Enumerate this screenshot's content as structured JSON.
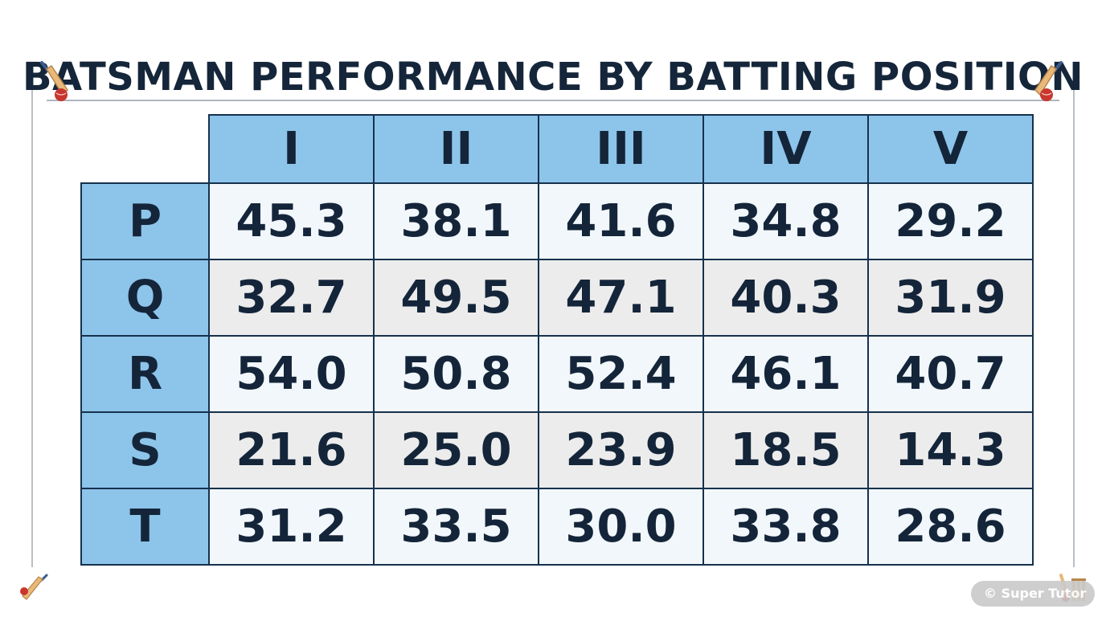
{
  "chart_data": {
    "type": "table",
    "title": "BATSMAN PERFORMANCE BY BATTING POSITION",
    "columns": [
      "I",
      "II",
      "III",
      "IV",
      "V"
    ],
    "rows": [
      {
        "label": "P",
        "values": [
          "45.3",
          "38.1",
          "41.6",
          "34.8",
          "29.2"
        ]
      },
      {
        "label": "Q",
        "values": [
          "32.7",
          "49.5",
          "47.1",
          "40.3",
          "31.9"
        ]
      },
      {
        "label": "R",
        "values": [
          "54.0",
          "50.8",
          "52.4",
          "46.1",
          "40.7"
        ]
      },
      {
        "label": "S",
        "values": [
          "21.6",
          "25.0",
          "23.9",
          "18.5",
          "14.3"
        ]
      },
      {
        "label": "T",
        "values": [
          "31.2",
          "33.5",
          "30.0",
          "33.8",
          "28.6"
        ]
      }
    ]
  },
  "watermark": "© Super Tutor",
  "colors": {
    "header_fill": "#8dc4ea",
    "border": "#16314d",
    "text": "#14253a",
    "row_light": "#f2f7fb",
    "row_grey": "#ececec"
  },
  "icons": {
    "title_left": "cricket-bat-ball-icon",
    "title_right": "cricket-bat-ball-icon",
    "bottom_left": "cricket-bat-ball-icon",
    "bottom_right": "cricket-stumps-icon"
  }
}
